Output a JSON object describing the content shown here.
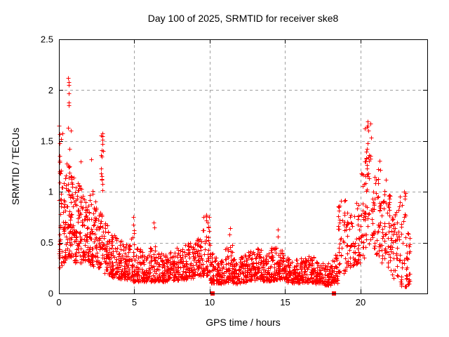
{
  "chart_data": {
    "type": "scatter",
    "title": "Day 100 of 2025, SRMTID for receiver ske8",
    "xlabel": "GPS time / hours",
    "ylabel": "SRMTID / TECUs",
    "xlim": [
      0,
      24.42
    ],
    "ylim": [
      0,
      2.5
    ],
    "xticks": [
      0,
      5,
      10,
      15,
      20
    ],
    "yticks": [
      0,
      0.5,
      1,
      1.5,
      2,
      2.5
    ],
    "grid": true,
    "legend": "none",
    "marker": "plus",
    "marker_size": 7,
    "marker_color": "#ff0000",
    "grid_color": "#a0a0a0",
    "axis_color": "#000000",
    "background_color": "#ffffff",
    "density_bands_format": [
      "t_start_hours",
      "t_end_hours",
      "value_min_TECU",
      "value_max_TECU",
      "point_count",
      "skew_exponent"
    ],
    "density_bands": [
      [
        0.0,
        0.25,
        0.25,
        1.65,
        40,
        1.3
      ],
      [
        0.25,
        0.5,
        0.3,
        1.25,
        36,
        1.2
      ],
      [
        0.5,
        0.75,
        0.35,
        1.45,
        38,
        1.2
      ],
      [
        0.75,
        1.0,
        0.3,
        1.15,
        36,
        1.2
      ],
      [
        1.0,
        1.25,
        0.3,
        1.05,
        34,
        1.2
      ],
      [
        1.25,
        1.5,
        0.3,
        1.1,
        34,
        1.2
      ],
      [
        1.5,
        1.75,
        0.32,
        0.98,
        32,
        1.2
      ],
      [
        1.75,
        2.0,
        0.3,
        0.92,
        32,
        1.2
      ],
      [
        2.0,
        2.25,
        0.28,
        1.05,
        32,
        1.3
      ],
      [
        2.25,
        2.5,
        0.26,
        0.95,
        30,
        1.2
      ],
      [
        2.5,
        2.75,
        0.25,
        0.8,
        30,
        1.3
      ],
      [
        2.75,
        3.0,
        0.28,
        1.58,
        34,
        1.6
      ],
      [
        3.0,
        3.25,
        0.2,
        0.72,
        30,
        1.4
      ],
      [
        3.25,
        3.5,
        0.18,
        0.62,
        30,
        1.4
      ],
      [
        3.5,
        3.75,
        0.16,
        0.58,
        28,
        1.4
      ],
      [
        3.75,
        4.0,
        0.15,
        0.55,
        28,
        1.4
      ],
      [
        4.0,
        4.25,
        0.14,
        0.52,
        28,
        1.5
      ],
      [
        4.25,
        4.5,
        0.13,
        0.5,
        28,
        1.5
      ],
      [
        4.5,
        4.75,
        0.13,
        0.48,
        28,
        1.5
      ],
      [
        4.75,
        5.0,
        0.12,
        0.6,
        28,
        1.5
      ],
      [
        5.0,
        5.5,
        0.12,
        0.45,
        50,
        1.5
      ],
      [
        5.5,
        6.0,
        0.12,
        0.42,
        50,
        1.5
      ],
      [
        6.0,
        6.5,
        0.12,
        0.48,
        52,
        1.6
      ],
      [
        6.5,
        7.0,
        0.12,
        0.4,
        52,
        1.5
      ],
      [
        7.0,
        7.5,
        0.12,
        0.42,
        52,
        1.5
      ],
      [
        7.5,
        8.0,
        0.13,
        0.45,
        52,
        1.5
      ],
      [
        8.0,
        8.5,
        0.14,
        0.5,
        52,
        1.5
      ],
      [
        8.5,
        9.0,
        0.15,
        0.5,
        52,
        1.4
      ],
      [
        9.0,
        9.5,
        0.17,
        0.55,
        50,
        1.4
      ],
      [
        9.5,
        10.0,
        0.18,
        0.78,
        50,
        1.5
      ],
      [
        10.0,
        10.5,
        0.1,
        0.4,
        50,
        1.5
      ],
      [
        10.5,
        11.0,
        0.1,
        0.36,
        50,
        1.5
      ],
      [
        11.0,
        11.5,
        0.11,
        0.5,
        52,
        1.6
      ],
      [
        11.5,
        12.0,
        0.1,
        0.35,
        52,
        1.5
      ],
      [
        12.0,
        12.5,
        0.11,
        0.38,
        52,
        1.5
      ],
      [
        12.5,
        13.0,
        0.13,
        0.42,
        52,
        1.5
      ],
      [
        13.0,
        13.5,
        0.14,
        0.45,
        52,
        1.5
      ],
      [
        13.5,
        14.0,
        0.12,
        0.4,
        52,
        1.5
      ],
      [
        14.0,
        14.5,
        0.13,
        0.45,
        52,
        1.5
      ],
      [
        14.5,
        15.0,
        0.14,
        0.45,
        52,
        1.4
      ],
      [
        15.0,
        15.5,
        0.11,
        0.35,
        52,
        1.5
      ],
      [
        15.5,
        16.0,
        0.1,
        0.33,
        52,
        1.5
      ],
      [
        16.0,
        16.5,
        0.11,
        0.35,
        52,
        1.5
      ],
      [
        16.5,
        17.0,
        0.11,
        0.37,
        52,
        1.5
      ],
      [
        17.0,
        17.5,
        0.1,
        0.34,
        52,
        1.5
      ],
      [
        17.5,
        18.0,
        0.08,
        0.3,
        50,
        1.5
      ],
      [
        18.0,
        18.5,
        0.1,
        0.38,
        46,
        1.5
      ],
      [
        18.5,
        19.0,
        0.2,
        0.95,
        40,
        1.4
      ],
      [
        19.0,
        19.5,
        0.25,
        0.8,
        38,
        1.3
      ],
      [
        19.5,
        20.0,
        0.28,
        0.9,
        38,
        1.3
      ],
      [
        20.0,
        20.25,
        0.35,
        1.2,
        24,
        1.2
      ],
      [
        20.25,
        20.75,
        0.45,
        1.68,
        44,
        1.0
      ],
      [
        20.75,
        21.0,
        0.4,
        1.3,
        24,
        1.2
      ],
      [
        21.0,
        21.35,
        0.35,
        1.35,
        30,
        1.2
      ],
      [
        21.35,
        21.7,
        0.3,
        1.15,
        28,
        1.3
      ],
      [
        21.7,
        22.0,
        0.25,
        1.0,
        26,
        1.3
      ],
      [
        22.0,
        22.35,
        0.15,
        0.85,
        28,
        1.4
      ],
      [
        22.35,
        22.7,
        0.1,
        1.0,
        28,
        1.4
      ],
      [
        22.7,
        23.1,
        0.06,
        1.0,
        34,
        1.3
      ],
      [
        23.1,
        23.3,
        0.05,
        0.75,
        14,
        1.3
      ]
    ],
    "notable_points": [
      [
        0.62,
        2.12
      ],
      [
        0.65,
        2.08
      ],
      [
        0.67,
        2.05
      ],
      [
        0.64,
        1.97
      ],
      [
        0.63,
        1.88
      ],
      [
        0.66,
        1.85
      ],
      [
        0.6,
        1.63
      ],
      [
        0.78,
        1.6
      ],
      [
        0.02,
        1.65
      ],
      [
        0.03,
        1.57
      ],
      [
        0.05,
        1.48
      ],
      [
        1.45,
        1.3
      ],
      [
        2.12,
        1.32
      ],
      [
        2.88,
        1.55
      ],
      [
        2.9,
        1.47
      ],
      [
        2.86,
        1.35
      ],
      [
        4.95,
        0.75
      ],
      [
        4.92,
        0.68
      ],
      [
        4.97,
        0.62
      ],
      [
        6.3,
        0.7
      ],
      [
        6.33,
        0.65
      ],
      [
        9.75,
        0.76
      ],
      [
        9.78,
        0.72
      ],
      [
        11.35,
        0.64
      ],
      [
        11.32,
        0.58
      ],
      [
        14.5,
        0.63
      ],
      [
        14.53,
        0.56
      ],
      [
        20.45,
        1.69
      ],
      [
        20.42,
        1.64
      ],
      [
        20.5,
        1.6
      ],
      [
        22.88,
        1.0
      ],
      [
        22.92,
        0.96
      ]
    ],
    "square_markers": [
      [
        10.17,
        0
      ],
      [
        18.25,
        0
      ]
    ]
  }
}
